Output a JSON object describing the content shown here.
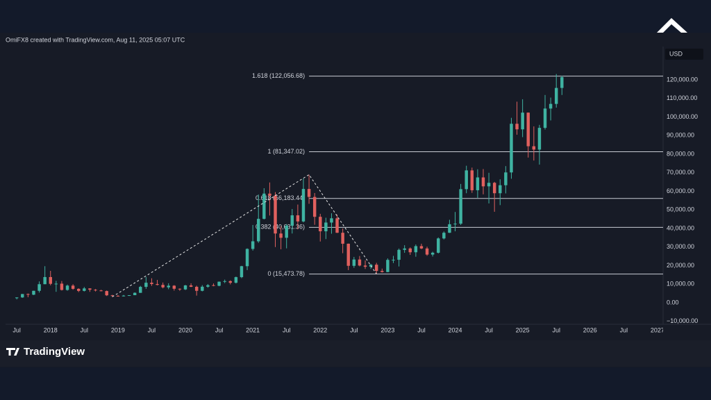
{
  "header": {
    "attribution": "OmiFX8 created with TradingView.com, Aug 11, 2025 05:07 UTC",
    "currency": "USD"
  },
  "footer": {
    "brand": "TradingView"
  },
  "chart_data": {
    "type": "candlestick",
    "categories": [
      "2017-07",
      "2017-08",
      "2017-09",
      "2017-10",
      "2017-11",
      "2017-12",
      "2018-01",
      "2018-02",
      "2018-03",
      "2018-04",
      "2018-05",
      "2018-06",
      "2018-07",
      "2018-08",
      "2018-09",
      "2018-10",
      "2018-11",
      "2018-12",
      "2019-01",
      "2019-02",
      "2019-03",
      "2019-04",
      "2019-05",
      "2019-06",
      "2019-07",
      "2019-08",
      "2019-09",
      "2019-10",
      "2019-11",
      "2019-12",
      "2020-01",
      "2020-02",
      "2020-03",
      "2020-04",
      "2020-05",
      "2020-06",
      "2020-07",
      "2020-08",
      "2020-09",
      "2020-10",
      "2020-11",
      "2020-12",
      "2021-01",
      "2021-02",
      "2021-03",
      "2021-04",
      "2021-05",
      "2021-06",
      "2021-07",
      "2021-08",
      "2021-09",
      "2021-10",
      "2021-11",
      "2021-12",
      "2022-01",
      "2022-02",
      "2022-03",
      "2022-04",
      "2022-05",
      "2022-06",
      "2022-07",
      "2022-08",
      "2022-09",
      "2022-10",
      "2022-11",
      "2022-12",
      "2023-01",
      "2023-02",
      "2023-03",
      "2023-04",
      "2023-05",
      "2023-06",
      "2023-07",
      "2023-08",
      "2023-09",
      "2023-10",
      "2023-11",
      "2023-12",
      "2024-01",
      "2024-02",
      "2024-03",
      "2024-04",
      "2024-05",
      "2024-06",
      "2024-07",
      "2024-08",
      "2024-09",
      "2024-10",
      "2024-11",
      "2024-12",
      "2025-01",
      "2025-02",
      "2025-03",
      "2025-04",
      "2025-05",
      "2025-06",
      "2025-07",
      "2025-08"
    ],
    "open": [
      2480,
      2870,
      4700,
      4340,
      6450,
      10000,
      13850,
      10200,
      10300,
      6900,
      9240,
      7500,
      6400,
      7730,
      7030,
      6630,
      6320,
      4020,
      3740,
      3460,
      3850,
      4100,
      5350,
      8570,
      10800,
      10080,
      9630,
      8300,
      9200,
      7550,
      7200,
      9350,
      8600,
      6440,
      8650,
      9460,
      9140,
      11350,
      11650,
      10780,
      13800,
      19700,
      29000,
      33100,
      45200,
      58800,
      57700,
      37300,
      35000,
      41500,
      47100,
      43800,
      61300,
      57000,
      46300,
      38500,
      43200,
      45500,
      37700,
      31800,
      19900,
      23300,
      20050,
      19400,
      20500,
      17150,
      16550,
      23100,
      23150,
      28500,
      29250,
      27200,
      30500,
      29250,
      25950,
      26950,
      34650,
      37700,
      42300,
      42600,
      61200,
      71300,
      60600,
      67500,
      62700,
      64600,
      59000,
      63300,
      70200,
      96400,
      93400,
      102400,
      84300,
      82500,
      94200,
      104600,
      107100,
      115700
    ],
    "high": [
      2950,
      4750,
      4980,
      6470,
      11500,
      19700,
      17200,
      11800,
      11700,
      9800,
      10000,
      7800,
      8500,
      7800,
      7400,
      7000,
      6600,
      4280,
      4100,
      4200,
      4100,
      5600,
      9100,
      13900,
      13200,
      12300,
      10900,
      10500,
      9500,
      7750,
      9600,
      10500,
      9200,
      9500,
      10070,
      10400,
      11450,
      12470,
      12070,
      14100,
      19900,
      29300,
      41900,
      58300,
      61700,
      64800,
      59600,
      41300,
      42400,
      50500,
      52900,
      67000,
      69000,
      59100,
      47900,
      45800,
      48200,
      47400,
      40000,
      31900,
      24700,
      25200,
      22800,
      21000,
      21500,
      18400,
      23900,
      25250,
      29200,
      31000,
      29800,
      31400,
      31800,
      30200,
      27500,
      35200,
      38400,
      44700,
      48900,
      64000,
      73800,
      72800,
      71900,
      72000,
      70000,
      65100,
      66500,
      73600,
      99600,
      108300,
      109600,
      102500,
      95000,
      95800,
      111900,
      110500,
      123200,
      122300
    ],
    "low": [
      1830,
      2670,
      2970,
      4160,
      5500,
      10000,
      9400,
      5900,
      6600,
      6500,
      7000,
      5750,
      6100,
      5880,
      6100,
      6150,
      3650,
      3150,
      3350,
      3390,
      3680,
      4080,
      5330,
      7500,
      9100,
      9350,
      7750,
      7300,
      6550,
      6430,
      6850,
      8450,
      3850,
      6150,
      8100,
      8900,
      8900,
      10600,
      9900,
      10400,
      13250,
      17600,
      28100,
      32300,
      44900,
      47000,
      30000,
      28800,
      29300,
      37300,
      39600,
      43300,
      53300,
      42000,
      33000,
      34300,
      37200,
      37600,
      26700,
      17600,
      18800,
      19600,
      18200,
      18200,
      15500,
      16300,
      16500,
      21400,
      19550,
      26900,
      25800,
      24800,
      28900,
      25300,
      24900,
      26550,
      34100,
      37600,
      38500,
      41900,
      59000,
      59200,
      56500,
      58400,
      53500,
      49000,
      52600,
      58900,
      66800,
      90500,
      89200,
      78200,
      76600,
      74400,
      93300,
      98200,
      105100,
      111900
    ],
    "close": [
      2875,
      4700,
      4340,
      6450,
      10000,
      13850,
      10200,
      10300,
      6900,
      9240,
      7500,
      6400,
      7730,
      7030,
      6630,
      6320,
      4020,
      3740,
      3460,
      3850,
      4100,
      5350,
      8570,
      10800,
      10080,
      9630,
      8300,
      9200,
      7550,
      7200,
      9350,
      8600,
      6440,
      8650,
      9460,
      9140,
      11350,
      11650,
      10780,
      13800,
      19700,
      29000,
      33100,
      45200,
      58800,
      57700,
      37300,
      35000,
      41500,
      47100,
      43800,
      61300,
      57000,
      46300,
      38500,
      43200,
      45500,
      37700,
      31800,
      19900,
      23300,
      20050,
      19400,
      20500,
      17150,
      16550,
      23100,
      23150,
      28500,
      29250,
      27200,
      30500,
      29250,
      25950,
      26950,
      34650,
      37700,
      42300,
      42600,
      61200,
      71300,
      60600,
      67500,
      62700,
      64600,
      59000,
      63300,
      70200,
      96400,
      93400,
      102400,
      84300,
      82500,
      94200,
      104600,
      107100,
      115700,
      121500
    ],
    "up_color": "#3fb3a2",
    "down_color": "#e0605e",
    "xlim": [
      "2017-05",
      "2027-02"
    ],
    "xticks": [
      {
        "value": "2017-07",
        "label": "Jul"
      },
      {
        "value": "2018-01",
        "label": "2018"
      },
      {
        "value": "2018-07",
        "label": "Jul"
      },
      {
        "value": "2019-01",
        "label": "2019"
      },
      {
        "value": "2019-07",
        "label": "Jul"
      },
      {
        "value": "2020-01",
        "label": "2020"
      },
      {
        "value": "2020-07",
        "label": "Jul"
      },
      {
        "value": "2021-01",
        "label": "2021"
      },
      {
        "value": "2021-07",
        "label": "Jul"
      },
      {
        "value": "2022-01",
        "label": "2022"
      },
      {
        "value": "2022-07",
        "label": "Jul"
      },
      {
        "value": "2023-01",
        "label": "2023"
      },
      {
        "value": "2023-07",
        "label": "Jul"
      },
      {
        "value": "2024-01",
        "label": "2024"
      },
      {
        "value": "2024-07",
        "label": "Jul"
      },
      {
        "value": "2025-01",
        "label": "2025"
      },
      {
        "value": "2025-07",
        "label": "Jul"
      },
      {
        "value": "2026-01",
        "label": "2026"
      },
      {
        "value": "2026-07",
        "label": "Jul"
      },
      {
        "value": "2027-01",
        "label": "2027"
      }
    ],
    "ylim": [
      -11600,
      138000
    ],
    "yticks": [
      {
        "value": -10000,
        "label": "−10,000.00"
      },
      {
        "value": 0,
        "label": "0.00"
      },
      {
        "value": 10000,
        "label": "10,000.00"
      },
      {
        "value": 20000,
        "label": "20,000.00"
      },
      {
        "value": 30000,
        "label": "30,000.00"
      },
      {
        "value": 40000,
        "label": "40,000.00"
      },
      {
        "value": 50000,
        "label": "50,000.00"
      },
      {
        "value": 60000,
        "label": "60,000.00"
      },
      {
        "value": 70000,
        "label": "70,000.00"
      },
      {
        "value": 80000,
        "label": "80,000.00"
      },
      {
        "value": 90000,
        "label": "90,000.00"
      },
      {
        "value": 100000,
        "label": "100,000.00"
      },
      {
        "value": 110000,
        "label": "110,000.00"
      },
      {
        "value": 120000,
        "label": "120,000.00"
      }
    ],
    "fib_levels": {
      "start": "2021-11",
      "levels": [
        {
          "label": "1.618 (122,056.68)",
          "value": 122056.68
        },
        {
          "label": "1 (81,347.02)",
          "value": 81347.02
        },
        {
          "label": "0.618 (56,183.44)",
          "value": 56183.44
        },
        {
          "label": "0.382 (40,631.36)",
          "value": 40631.36
        },
        {
          "label": "0 (15,473.78)",
          "value": 15473.78
        }
      ]
    },
    "trend_line": {
      "x": [
        "2018-12",
        "2021-11",
        "2022-11"
      ],
      "y": [
        3200,
        69000,
        15500
      ]
    }
  }
}
